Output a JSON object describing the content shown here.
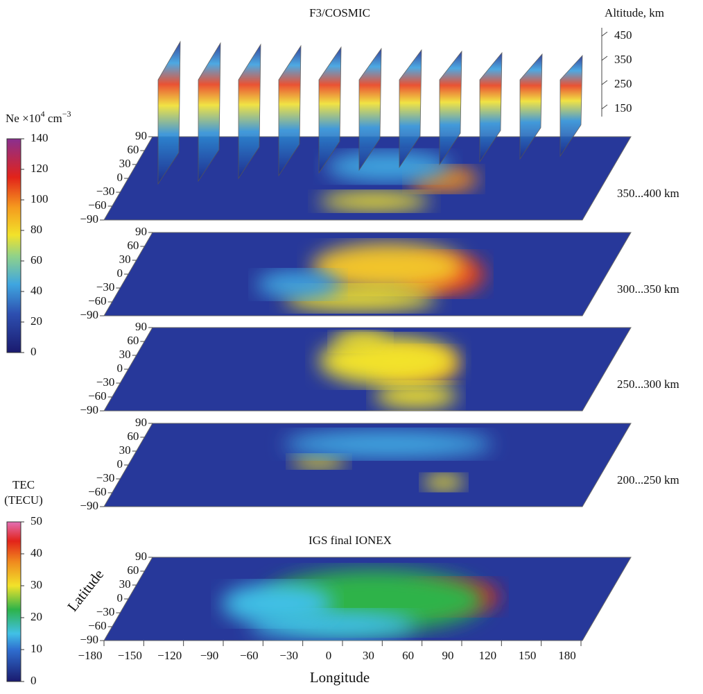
{
  "title": "F3/COSMIC",
  "altitude_axis": {
    "label": "Altitude, km",
    "ticks": [
      450,
      350,
      250,
      150
    ]
  },
  "ne_colorbar": {
    "label": "Ne ×10",
    "exponent": "4",
    "unit": " cm",
    "unit_exponent": "−3",
    "ticks": [
      0,
      20,
      40,
      60,
      80,
      100,
      120,
      140
    ]
  },
  "tec_colorbar": {
    "label": [
      "TEC",
      "(TECU)"
    ],
    "ticks": [
      0,
      10,
      20,
      30,
      40,
      50
    ]
  },
  "layers": [
    "350...400 km",
    "300...350 km",
    "250...300 km",
    "200...250 km"
  ],
  "igs_title": "IGS final IONEX",
  "latitude_label": "Latitude",
  "longitude_label": "Longitude",
  "latitude_ticks": [
    90,
    60,
    30,
    0,
    {
      "value": -30,
      "label": "−30"
    },
    {
      "value": -60,
      "label": "−60"
    },
    {
      "value": -90,
      "label": "−90"
    }
  ],
  "longitude_ticks": [
    {
      "value": -180,
      "label": "−180"
    },
    {
      "value": -150,
      "label": "−150"
    },
    {
      "value": -120,
      "label": "−120"
    },
    {
      "value": -90,
      "label": "−90"
    },
    {
      "value": -60,
      "label": "−60"
    },
    {
      "value": -30,
      "label": "−30"
    },
    0,
    30,
    60,
    90,
    120,
    150,
    180
  ]
}
